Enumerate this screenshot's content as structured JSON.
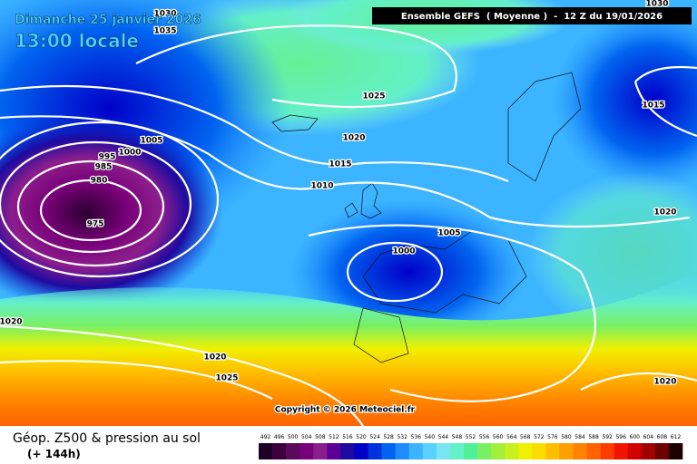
{
  "header": {
    "date": "Dimanche 25 janvier 2026",
    "time": "13:00 locale",
    "run": "Ensemble GEFS  ( Moyenne )  -  12 Z du 19/01/2026"
  },
  "map": {
    "isobar_labels": [
      1030,
      1035,
      1025,
      1020,
      1015,
      1010,
      1005,
      1000,
      995,
      985,
      980,
      975,
      1005,
      1000,
      1020,
      1015,
      1030,
      1020,
      1020,
      1025,
      1020
    ],
    "copyright": "Copyright © 2026 Meteociel.fr"
  },
  "footer": {
    "title": "Géop. Z500 & pression au sol",
    "lead": "(+ 144h)",
    "scale": {
      "values": [
        492,
        496,
        500,
        504,
        508,
        512,
        516,
        520,
        524,
        528,
        532,
        536,
        540,
        544,
        548,
        552,
        556,
        560,
        564,
        568,
        572,
        576,
        580,
        584,
        588,
        592,
        596,
        600,
        604,
        608,
        612
      ],
      "colors": [
        "#1e0028",
        "#3c003c",
        "#5a0a5a",
        "#780078",
        "#8c1e8c",
        "#5a0096",
        "#1e0aa0",
        "#0000c8",
        "#0032dc",
        "#0064f0",
        "#1e8cff",
        "#3cb4ff",
        "#5ad2ff",
        "#78e6f0",
        "#64f0c8",
        "#50f096",
        "#78f064",
        "#a0f03c",
        "#c8f01e",
        "#f0f000",
        "#ffdc00",
        "#ffbe00",
        "#ffa000",
        "#ff8200",
        "#ff6400",
        "#ff3c00",
        "#f01400",
        "#d20000",
        "#a00000",
        "#6e0000",
        "#1e0000"
      ]
    }
  }
}
